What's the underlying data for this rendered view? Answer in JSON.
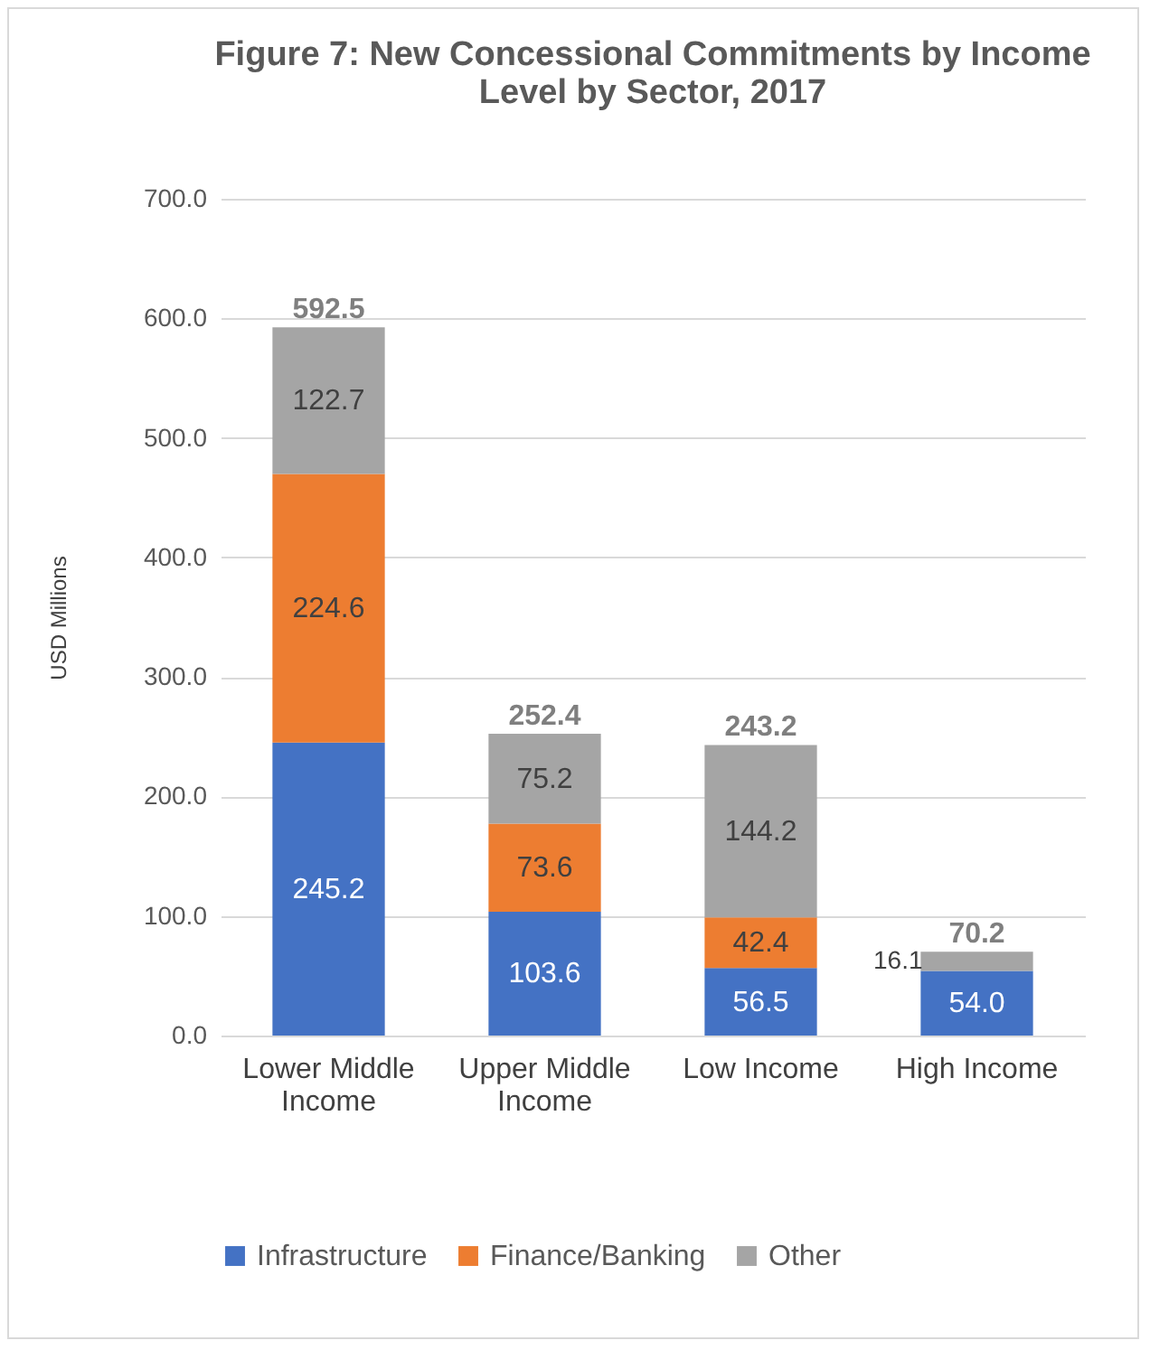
{
  "chart_data": {
    "type": "bar",
    "title": "Figure 7: New Concessional Commitments by Income Level by Sector, 2017",
    "ylabel": "USD Millions",
    "categories": [
      "Lower Middle Income",
      "Upper Middle Income",
      "Low Income",
      "High Income"
    ],
    "stacked": true,
    "series": [
      {
        "name": "Infrastructure",
        "color": "#4472c4",
        "values": [
          245.2,
          103.6,
          56.5,
          54.0
        ],
        "value_labels": [
          "245.2",
          "103.6",
          "56.5",
          "54.0"
        ]
      },
      {
        "name": "Finance/Banking",
        "color": "#ed7d31",
        "values": [
          224.6,
          73.6,
          42.4,
          null
        ],
        "value_labels": [
          "224.6",
          "73.6",
          "42.4",
          null
        ]
      },
      {
        "name": "Other",
        "color": "#a5a5a5",
        "values": [
          122.7,
          75.2,
          144.2,
          16.1
        ],
        "value_labels": [
          "122.7",
          "75.2",
          "144.2",
          "16.1"
        ]
      }
    ],
    "totals": [
      "592.5",
      "252.4",
      "243.2",
      "70.2"
    ],
    "ylim": [
      0,
      700
    ],
    "yticks": [
      {
        "value": 0,
        "label": "0.0"
      },
      {
        "value": 100,
        "label": "100.0"
      },
      {
        "value": 200,
        "label": "200.0"
      },
      {
        "value": 300,
        "label": "300.0"
      },
      {
        "value": 400,
        "label": "400.0"
      },
      {
        "value": 500,
        "label": "500.0"
      },
      {
        "value": 600,
        "label": "600.0"
      },
      {
        "value": 700,
        "label": "700.0"
      }
    ],
    "grid": "y",
    "legend": "bottom"
  }
}
